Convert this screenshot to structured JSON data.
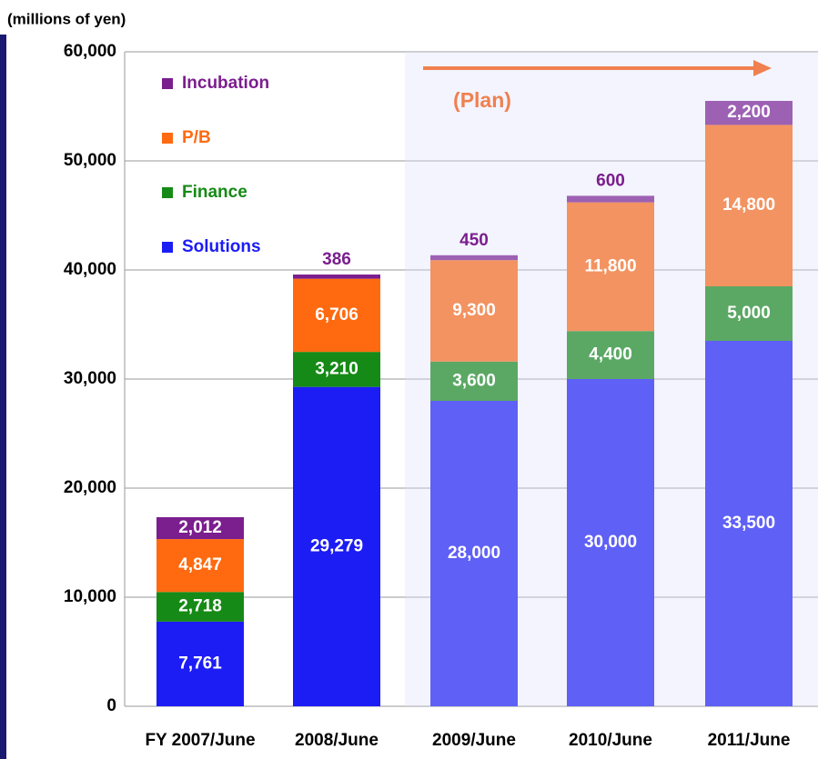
{
  "chart_data": {
    "type": "stacked_bar",
    "y_unit": "(millions of yen)",
    "annotation": "(Plan)",
    "categories": [
      "FY 2007/June",
      "2008/June",
      "2009/June",
      "2010/June",
      "2011/June"
    ],
    "series": [
      {
        "name": "Solutions",
        "color": "#1c1cf5",
        "values": [
          7761,
          29279,
          28000,
          30000,
          33500
        ],
        "value_labels": [
          "7,761",
          "29,279",
          "28,000",
          "30,000",
          "33,500"
        ]
      },
      {
        "name": "Finance",
        "color": "#168a16",
        "values": [
          2718,
          3210,
          3600,
          4400,
          5000
        ],
        "value_labels": [
          "2,718",
          "3,210",
          "3,600",
          "4,400",
          "5,000"
        ]
      },
      {
        "name": "P/B",
        "color": "#ff6a10",
        "values": [
          4847,
          6706,
          9300,
          11800,
          14800
        ],
        "value_labels": [
          "4,847",
          "6,706",
          "9,300",
          "11,800",
          "14,800"
        ]
      },
      {
        "name": "Incubation",
        "color": "#7b1e8e",
        "values": [
          2012,
          386,
          450,
          600,
          2200
        ],
        "value_labels": [
          "2,012",
          "386",
          "450",
          "600",
          "2,200"
        ]
      }
    ],
    "ylim": [
      0,
      60000
    ],
    "yticks": [
      0,
      {
        "value": 10000,
        "label": "10,000"
      },
      {
        "value": 20000,
        "label": "20,000"
      },
      {
        "value": 30000,
        "label": "30,000"
      },
      {
        "value": 40000,
        "label": "40,000"
      },
      {
        "value": 50000,
        "label": "50,000"
      },
      {
        "value": 60000,
        "label": "60,000"
      }
    ],
    "grid": true
  }
}
